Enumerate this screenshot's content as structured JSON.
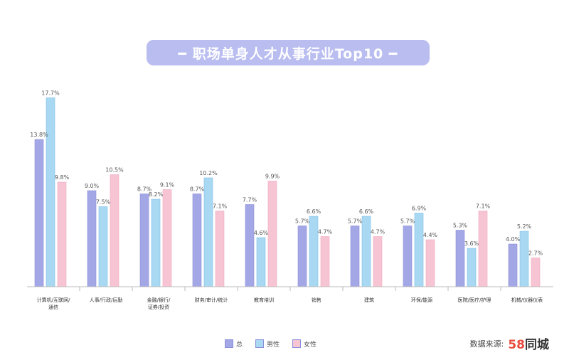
{
  "title": "━ 职场单身人才从事行业Top10 ━",
  "source": {
    "label": "数据来源:",
    "logo_num": "58",
    "logo_text": "同城"
  },
  "colors": {
    "s1": "#a3a7e6",
    "s2": "#a8d8f2",
    "s3": "#f7c4d4",
    "axis": "#bbbbbb"
  },
  "chart_data": {
    "type": "bar",
    "title": "职场单身人才从事行业Top10",
    "categories": [
      [
        "计算机/互联网/",
        "通信"
      ],
      [
        "人事/行政/后勤"
      ],
      [
        "金融/银行/",
        "证券/投资"
      ],
      [
        "财务/审计/统计"
      ],
      [
        "教育培训"
      ],
      [
        "销售"
      ],
      [
        "建筑"
      ],
      [
        "环保/能源"
      ],
      [
        "医院/医疗/护理"
      ],
      [
        "机械/仪器仪表"
      ]
    ],
    "series": [
      {
        "name": "总",
        "values": [
          13.8,
          9.0,
          8.7,
          8.7,
          7.7,
          5.7,
          5.7,
          5.7,
          5.3,
          4.0
        ],
        "labels": [
          "13.8%",
          "9.0%",
          "8.7%",
          "8.7%",
          "7.7%",
          "5.7%",
          "5.7%",
          "5.7%",
          "5.3%",
          "4.0%"
        ]
      },
      {
        "name": "男性",
        "values": [
          17.7,
          7.5,
          8.2,
          10.2,
          4.6,
          6.6,
          6.6,
          6.9,
          3.6,
          5.2
        ],
        "labels": [
          "17.7%",
          "7.5%",
          "8.2%",
          "10.2%",
          "4.6%",
          "6.6%",
          "6.6%",
          "6.9%",
          "3.6%",
          "5.2%"
        ]
      },
      {
        "name": "女性",
        "values": [
          9.8,
          10.5,
          9.1,
          7.1,
          9.9,
          4.7,
          4.7,
          4.4,
          7.1,
          2.7
        ],
        "labels": [
          "9.8%",
          "10.5%",
          "9.1%",
          "7.1%",
          "9.9%",
          "4.7%",
          "4.7%",
          "4.4%",
          "7.1%",
          "2.7%"
        ]
      }
    ],
    "ylim": [
      0,
      19
    ],
    "grid": false,
    "legend": "bottom-center"
  }
}
